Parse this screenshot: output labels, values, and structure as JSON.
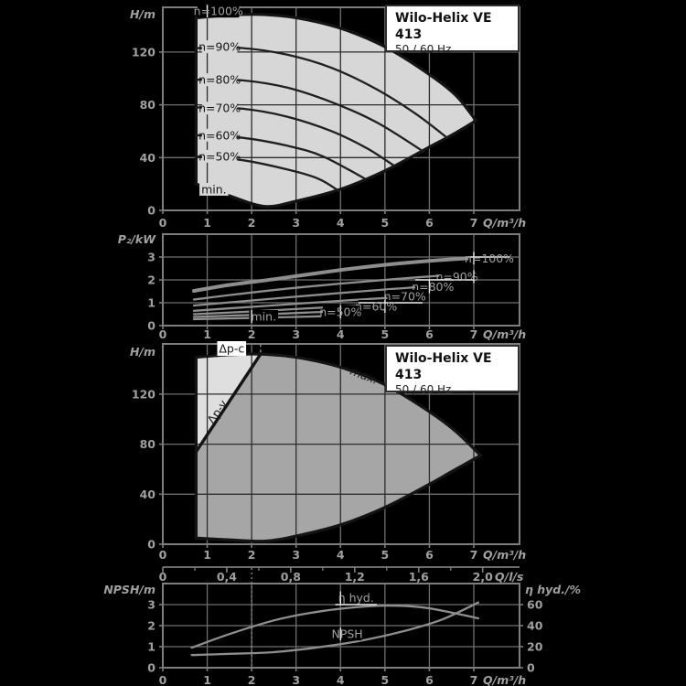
{
  "window": {
    "background": "#000000"
  },
  "title_box": {
    "title": "Wilo-Helix VE 413",
    "subtitle": "50 / 60 Hz"
  },
  "colors": {
    "background": "#000000",
    "grid_line": "#6f6f6f",
    "frame_line": "#7d7d7d",
    "ghost_text": "#a0a0a0",
    "ghost_curve": "#8e8e8e",
    "dark_line": "#1f1f1f",
    "envelope_outline": "#141414",
    "chart1_fill": "#d7d7d7",
    "chart3_fill": "#a6a6a6",
    "chart3_triangle_fill": "#dfdfdf",
    "label_on_fill_text": "#161616",
    "halo_white": "#eeeeee",
    "title_box_bg": "#ffffff",
    "title_box_border": "#2e2e2e"
  },
  "chart_data": [
    {
      "id": "h_q_speed",
      "type": "line",
      "title": "Wilo-Helix VE 413  50 / 60 Hz",
      "xlabel": "Q/m³/h",
      "ylabel": "H/m",
      "xlim": [
        0,
        8.03
      ],
      "ylim": [
        0,
        154
      ],
      "x_ticks": [
        0,
        1,
        2,
        3,
        4,
        5,
        6,
        7
      ],
      "x_tick_labels": [
        "0",
        "1",
        "2",
        "3",
        "4",
        "5",
        "6",
        "7"
      ],
      "y_ticks": [
        0,
        40,
        80,
        120
      ],
      "y_tick_labels": [
        "0",
        "40",
        "80",
        "120"
      ],
      "grid": true,
      "envelope": {
        "top": [
          [
            0.75,
            146
          ],
          [
            1.5,
            148
          ],
          [
            2.2,
            148.5
          ],
          [
            3,
            146
          ],
          [
            4,
            138
          ],
          [
            5,
            124
          ],
          [
            6,
            103
          ],
          [
            6.6,
            87
          ],
          [
            7.05,
            68
          ]
        ],
        "bottom": [
          [
            7.05,
            68
          ],
          [
            6.5,
            57
          ],
          [
            6,
            48
          ],
          [
            5,
            30
          ],
          [
            4,
            16
          ],
          [
            3,
            7
          ],
          [
            2.3,
            3
          ],
          [
            1.5,
            11
          ],
          [
            0.75,
            20
          ]
        ]
      },
      "series": [
        {
          "name": "n=90%",
          "points": [
            [
              0.75,
              123
            ],
            [
              1.8,
              123
            ],
            [
              2.8,
              118
            ],
            [
              3.8,
              108
            ],
            [
              4.8,
              92
            ],
            [
              5.7,
              73
            ],
            [
              6.4,
              55
            ]
          ]
        },
        {
          "name": "n=80%",
          "points": [
            [
              0.75,
              99
            ],
            [
              1.8,
              98.5
            ],
            [
              2.8,
              93
            ],
            [
              3.8,
              82
            ],
            [
              4.8,
              67
            ],
            [
              5.85,
              45
            ]
          ]
        },
        {
          "name": "n=70%",
          "points": [
            [
              0.75,
              78
            ],
            [
              1.8,
              77
            ],
            [
              2.8,
              71
            ],
            [
              3.8,
              60
            ],
            [
              4.6,
              47
            ],
            [
              5.2,
              34
            ]
          ]
        },
        {
          "name": "n=60%",
          "points": [
            [
              0.75,
              57
            ],
            [
              1.8,
              55
            ],
            [
              2.8,
              49
            ],
            [
              3.6,
              41
            ],
            [
              4.55,
              24
            ]
          ]
        },
        {
          "name": "n=50%",
          "points": [
            [
              0.75,
              41
            ],
            [
              1.8,
              38
            ],
            [
              2.8,
              31
            ],
            [
              3.5,
              24
            ],
            [
              3.95,
              15
            ]
          ]
        }
      ],
      "labels": [
        {
          "text": "n=100%",
          "x": 1.25,
          "y": 151,
          "bg": "black"
        },
        {
          "text": "n=90%",
          "x": 1.28,
          "y": 124,
          "bg": "fill"
        },
        {
          "text": "n=80%",
          "x": 1.28,
          "y": 99,
          "bg": "fill"
        },
        {
          "text": "n=70%",
          "x": 1.28,
          "y": 77.5,
          "bg": "fill"
        },
        {
          "text": "n=60%",
          "x": 1.28,
          "y": 57,
          "bg": "fill"
        },
        {
          "text": "n=50%",
          "x": 1.28,
          "y": 41,
          "bg": "fill"
        },
        {
          "text": "min.",
          "x": 1.15,
          "y": 16,
          "bg": "fill"
        }
      ]
    },
    {
      "id": "p2_q",
      "type": "line",
      "xlabel": "Q/m³/h",
      "ylabel": "P₂/kW",
      "xlim": [
        0,
        8.03
      ],
      "ylim": [
        0,
        4
      ],
      "x_ticks": [
        0,
        1,
        2,
        3,
        4,
        5,
        6,
        7
      ],
      "x_tick_labels": [
        "0",
        "1",
        "2",
        "3",
        "4",
        "5",
        "6",
        "7"
      ],
      "y_ticks": [
        0,
        1,
        2,
        3
      ],
      "y_tick_labels": [
        "0",
        "1",
        "2",
        "3"
      ],
      "grid": true,
      "series": [
        {
          "name": "n=100%",
          "w": 4,
          "points": [
            [
              0.7,
              1.52
            ],
            [
              1.5,
              1.78
            ],
            [
              2.5,
              2.03
            ],
            [
              3.5,
              2.3
            ],
            [
              4.5,
              2.55
            ],
            [
              5.5,
              2.75
            ],
            [
              6.5,
              2.9
            ],
            [
              7.2,
              2.97
            ]
          ]
        },
        {
          "name": "n=90%",
          "points": [
            [
              0.7,
              1.14
            ],
            [
              2,
              1.45
            ],
            [
              3.5,
              1.75
            ],
            [
              5,
              2.0
            ],
            [
              6,
              2.15
            ],
            [
              6.6,
              2.22
            ]
          ]
        },
        {
          "name": "n=80%",
          "points": [
            [
              0.7,
              0.88
            ],
            [
              2,
              1.1
            ],
            [
              3.5,
              1.35
            ],
            [
              5,
              1.58
            ],
            [
              5.9,
              1.7
            ]
          ]
        },
        {
          "name": "n=70%",
          "points": [
            [
              0.7,
              0.65
            ],
            [
              2,
              0.82
            ],
            [
              3.5,
              1.02
            ],
            [
              4.6,
              1.16
            ],
            [
              5.25,
              1.23
            ]
          ]
        },
        {
          "name": "n=60%",
          "points": [
            [
              0.7,
              0.5
            ],
            [
              2,
              0.62
            ],
            [
              3.5,
              0.78
            ],
            [
              4.55,
              0.88
            ]
          ]
        },
        {
          "name": "n=50%",
          "points": [
            [
              0.7,
              0.38
            ],
            [
              2,
              0.47
            ],
            [
              3.2,
              0.57
            ],
            [
              3.95,
              0.62
            ]
          ]
        },
        {
          "name": "min.",
          "points": [
            [
              0.7,
              0.28
            ],
            [
              1.8,
              0.33
            ],
            [
              3,
              0.38
            ],
            [
              3.55,
              0.41
            ]
          ]
        }
      ],
      "labels": [
        {
          "text": "n=100%",
          "x": 7.35,
          "y": 2.95,
          "bg": "black"
        },
        {
          "text": "n=90%",
          "x": 6.62,
          "y": 2.14,
          "bg": "black"
        },
        {
          "text": "n=80%",
          "x": 6.08,
          "y": 1.7,
          "bg": "black"
        },
        {
          "text": "n=70%",
          "x": 5.45,
          "y": 1.28,
          "bg": "black"
        },
        {
          "text": "n=60%",
          "x": 4.8,
          "y": 0.84,
          "bg": "black"
        },
        {
          "text": "n=50%",
          "x": 4.0,
          "y": 0.6,
          "bg": "black"
        },
        {
          "text": "min.",
          "x": 2.27,
          "y": 0.4,
          "bg": "black"
        }
      ]
    },
    {
      "id": "h_q_range",
      "type": "line",
      "title": "Wilo-Helix VE 413  50 / 60 Hz",
      "xlabel": "Q/m³/h",
      "ylabel": "H/m",
      "xlim": [
        0,
        8.03
      ],
      "ylim": [
        0,
        160
      ],
      "x_ticks": [
        0,
        1,
        2,
        3,
        4,
        5,
        6,
        7
      ],
      "x_tick_labels": [
        "0",
        "1",
        "2",
        "3",
        "4",
        "5",
        "6",
        "7"
      ],
      "y_ticks": [
        0,
        40,
        80,
        120
      ],
      "y_tick_labels": [
        "0",
        "40",
        "80",
        "120"
      ],
      "grid": true,
      "envelope": {
        "top": [
          [
            0.75,
            149.5
          ],
          [
            1.5,
            151.5
          ],
          [
            2.2,
            152
          ],
          [
            3,
            149.5
          ],
          [
            4,
            141.5
          ],
          [
            5,
            127.5
          ],
          [
            6,
            106
          ],
          [
            6.6,
            90
          ],
          [
            7.15,
            71
          ]
        ],
        "bottom": [
          [
            7.15,
            71
          ],
          [
            6.5,
            58
          ],
          [
            6,
            48
          ],
          [
            5,
            29.5
          ],
          [
            4,
            15.5
          ],
          [
            3,
            6.5
          ],
          [
            2.3,
            2.5
          ],
          [
            1.5,
            3.5
          ],
          [
            0.75,
            5
          ]
        ]
      },
      "triangle": {
        "apex": [
          0.75,
          74
        ],
        "top": [
          [
            0.75,
            149.5
          ],
          [
            1.5,
            151.5
          ],
          [
            2.2,
            152
          ]
        ]
      },
      "dp_line": [
        [
          0.75,
          74
        ],
        [
          2.2,
          152
        ]
      ],
      "dashed_line": [
        [
          2.2,
          160
        ],
        [
          2.2,
          152.3
        ]
      ],
      "labels": [
        {
          "text": "Δp-c",
          "x": 1.55,
          "y": 156.5,
          "bg": "white"
        },
        {
          "text": "Δp-v",
          "x": 1.3,
          "y": 104,
          "rotate": -56
        },
        {
          "text": "max.",
          "x": 4.5,
          "y": 132,
          "rotate": 21,
          "italic": true
        }
      ]
    },
    {
      "id": "npsh_eta",
      "type": "line",
      "xlabel": "Q/m³/h",
      "ylabel": "NPSH/m",
      "ylabel_right": "η hyd./%",
      "xlim": [
        0,
        8.03
      ],
      "ylim": [
        0,
        4
      ],
      "ylim_right": [
        0,
        80
      ],
      "x_ticks": [
        0,
        1,
        2,
        3,
        4,
        5,
        6,
        7
      ],
      "x_tick_labels": [
        "0",
        "1",
        "2",
        "3",
        "4",
        "5",
        "6",
        "7"
      ],
      "y_ticks": [
        0,
        1,
        2,
        3
      ],
      "y_tick_labels": [
        "0",
        "1",
        "2",
        "3"
      ],
      "y_ticks_right": [
        0,
        20,
        40,
        60
      ],
      "y_tick_labels_right": [
        "0",
        "20",
        "40",
        "60"
      ],
      "grid": true,
      "marker_line": {
        "x": 2,
        "style": "dotted"
      },
      "series": [
        {
          "name": "η hyd.",
          "points": [
            [
              0.65,
              0.95
            ],
            [
              1.5,
              1.6
            ],
            [
              2.5,
              2.25
            ],
            [
              3.3,
              2.6
            ],
            [
              4.2,
              2.85
            ],
            [
              5,
              2.95
            ],
            [
              5.8,
              2.88
            ],
            [
              6.5,
              2.62
            ],
            [
              7.1,
              2.35
            ]
          ]
        },
        {
          "name": "NPSH",
          "points": [
            [
              0.65,
              0.6
            ],
            [
              1.5,
              0.66
            ],
            [
              2.5,
              0.74
            ],
            [
              3.5,
              0.97
            ],
            [
              4.5,
              1.3
            ],
            [
              5.5,
              1.78
            ],
            [
              6.3,
              2.3
            ],
            [
              7.1,
              3.1
            ]
          ]
        }
      ],
      "labels": [
        {
          "text": "η hyd.",
          "x": 4.35,
          "y": 3.32,
          "bg": "black"
        },
        {
          "text": "NPSH",
          "x": 4.15,
          "y": 1.6,
          "bg": "black"
        }
      ]
    },
    {
      "id": "q_ls_axis",
      "type": "axis",
      "label": "Q/l/s",
      "tick_values_ls": [
        0,
        0.4,
        0.8,
        1.2,
        1.6,
        2.0
      ],
      "tick_labels": [
        "0",
        "0,4",
        "0,8",
        "1,2",
        "1,6",
        "2,0"
      ],
      "minor_step_ls": 0.2,
      "m3h_per_ls": 3.6
    }
  ]
}
